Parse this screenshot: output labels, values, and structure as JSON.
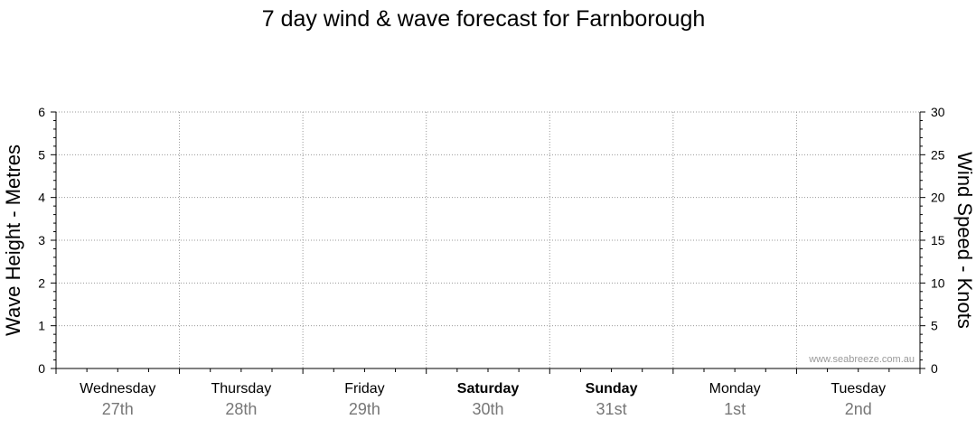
{
  "chart_data": {
    "type": "line",
    "title": "7 day wind & wave forecast for Farnborough",
    "ylabel_left": "Wave Height - Metres",
    "ylabel_right": "Wind Speed - Knots",
    "ylim_left": [
      0,
      6
    ],
    "ylim_right": [
      0,
      30
    ],
    "yticks_left": [
      "0",
      "1",
      "2",
      "3",
      "4",
      "5",
      "6"
    ],
    "yticks_right": [
      "0",
      "5",
      "10",
      "15",
      "20",
      "25",
      "30"
    ],
    "days": [
      {
        "day": "Wednesday",
        "date": "27th",
        "bold": false
      },
      {
        "day": "Thursday",
        "date": "28th",
        "bold": false
      },
      {
        "day": "Friday",
        "date": "29th",
        "bold": false
      },
      {
        "day": "Saturday",
        "date": "30th",
        "bold": true
      },
      {
        "day": "Sunday",
        "date": "31st",
        "bold": true
      },
      {
        "day": "Monday",
        "date": "1st",
        "bold": false
      },
      {
        "day": "Tuesday",
        "date": "2nd",
        "bold": false
      }
    ],
    "grid": true,
    "series": []
  },
  "watermark": "www.seabreeze.com.au"
}
